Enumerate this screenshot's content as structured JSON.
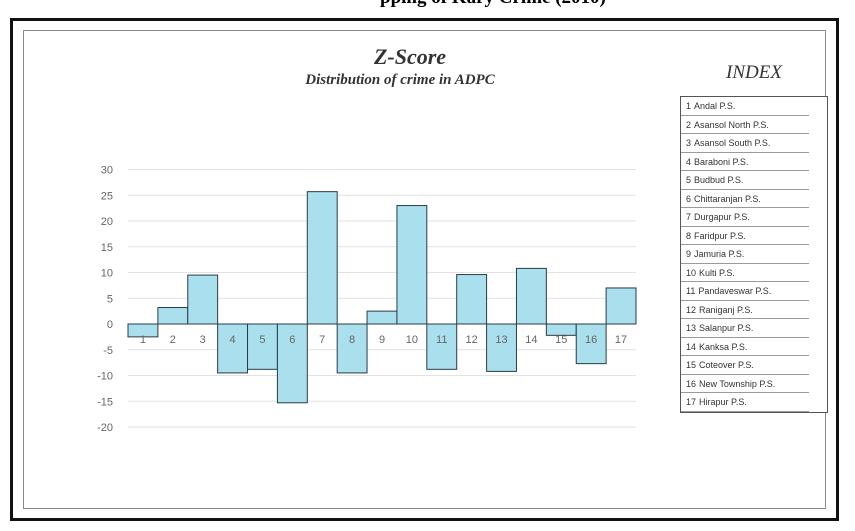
{
  "top_strip": {
    "text": "pping of Kary Crime (2010)"
  },
  "chart_data": {
    "type": "bar",
    "title": "Z-Score",
    "subtitle": "Distribution of crime in ADPC",
    "xlabel": "",
    "ylabel": "",
    "categories": [
      "1",
      "2",
      "3",
      "4",
      "5",
      "6",
      "7",
      "8",
      "9",
      "10",
      "11",
      "12",
      "13",
      "14",
      "15",
      "16",
      "17"
    ],
    "values": [
      -2.5,
      3.2,
      9.5,
      -9.5,
      -8.8,
      -15.3,
      25.7,
      -9.5,
      2.5,
      23,
      -8.8,
      9.6,
      -9.2,
      10.8,
      -2.2,
      -7.7,
      7
    ],
    "yticks": [
      "30",
      "25",
      "20",
      "15",
      "10",
      "5",
      "0",
      "-5",
      "-10",
      "-15",
      "-20"
    ],
    "ylim": [
      -20,
      30
    ],
    "grid": true,
    "bar_color": "#aadfed",
    "bar_edge_color": "#2b3b48"
  },
  "index": {
    "title": "INDEX",
    "items": [
      {
        "num": "1",
        "name": "Andal P.S."
      },
      {
        "num": "2",
        "name": "Asansol North P.S."
      },
      {
        "num": "3",
        "name": "Asansol South P.S."
      },
      {
        "num": "4",
        "name": "Baraboni P.S."
      },
      {
        "num": "5",
        "name": "Budbud P.S."
      },
      {
        "num": "6",
        "name": "Chittaranjan P.S."
      },
      {
        "num": "7",
        "name": "Durgapur P.S."
      },
      {
        "num": "8",
        "name": "Faridpur P.S."
      },
      {
        "num": "9",
        "name": "Jamuria P.S."
      },
      {
        "num": "10",
        "name": "Kulti P.S."
      },
      {
        "num": "11",
        "name": "Pandaveswar P.S."
      },
      {
        "num": "12",
        "name": "Raniganj P.S."
      },
      {
        "num": "13",
        "name": "Salanpur P.S."
      },
      {
        "num": "14",
        "name": "Kanksa P.S."
      },
      {
        "num": "15",
        "name": "Coteover P.S."
      },
      {
        "num": "16",
        "name": "New Township P.S."
      },
      {
        "num": "17",
        "name": "Hirapur P.S."
      }
    ]
  }
}
